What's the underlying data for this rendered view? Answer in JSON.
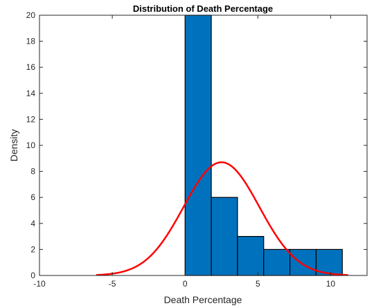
{
  "chart_data": {
    "type": "bar",
    "title": "Distribution of Death Percentage",
    "xlabel": "Death Percentage",
    "ylabel": "Density",
    "xlim": [
      -10,
      12.5
    ],
    "ylim": [
      0,
      20
    ],
    "xticks": [
      -10,
      -5,
      0,
      5,
      10
    ],
    "yticks": [
      0,
      2,
      4,
      6,
      8,
      10,
      12,
      14,
      16,
      18,
      20
    ],
    "grid": false,
    "legend": "none",
    "histogram": {
      "bin_edges": [
        0,
        1.8,
        3.6,
        5.4,
        7.2,
        9.0,
        10.8
      ],
      "values": [
        20,
        6,
        3,
        2,
        2,
        2
      ],
      "color": "#0072BD",
      "edgecolor": "#000000"
    },
    "fit_curve": {
      "type": "normal-pdf-scaled",
      "mean": 2.5,
      "sigma": 2.6,
      "peak": 8.7,
      "x_range": [
        -6.1,
        11.2
      ],
      "color": "#FF0000"
    }
  }
}
